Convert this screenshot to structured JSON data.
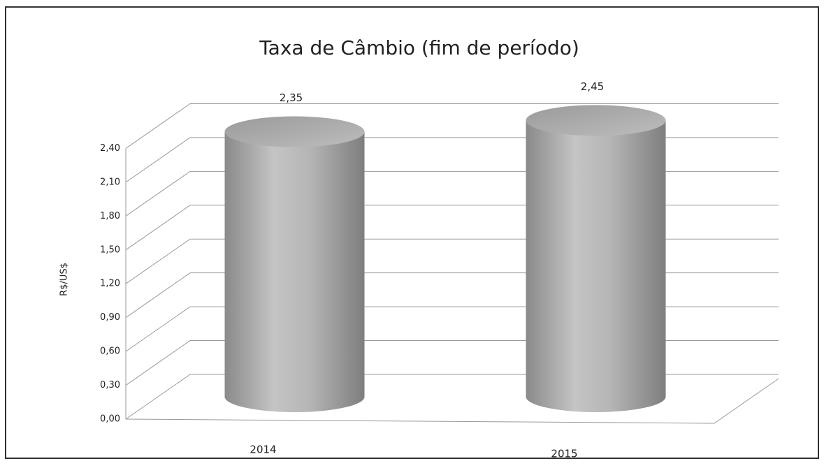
{
  "chart_data": {
    "type": "bar",
    "title": "Taxa de Câmbio (fim de período)",
    "y_label": "R$/US$",
    "categories": [
      "2014",
      "2015"
    ],
    "values": [
      2.35,
      2.45
    ],
    "value_labels": [
      "2,35",
      "2,45"
    ],
    "color": "#a8a8a8",
    "ylim": [
      0,
      2.7
    ],
    "yticks": [
      {
        "value": 0,
        "label": "0,00"
      },
      {
        "value": 0.3,
        "label": "0,30"
      },
      {
        "value": 0.6,
        "label": "0,60"
      },
      {
        "value": 0.9,
        "label": "0,90"
      },
      {
        "value": 1.2,
        "label": "1,20"
      },
      {
        "value": 1.5,
        "label": "1,50"
      },
      {
        "value": 1.8,
        "label": "1,80"
      },
      {
        "value": 2.1,
        "label": "2,10"
      },
      {
        "value": 2.4,
        "label": "2,40"
      }
    ],
    "grid": true
  }
}
